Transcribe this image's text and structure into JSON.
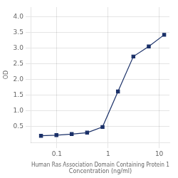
{
  "chart_data": {
    "type": "line",
    "xlabel": "Human Ras Association Domain Containing Protein 1\nConcentration (ng/ml)",
    "ylabel": "OD",
    "x": [
      0.049,
      0.098,
      0.195,
      0.39,
      0.781,
      1.563,
      3.125,
      6.25,
      12.5
    ],
    "values": [
      0.21,
      0.23,
      0.265,
      0.31,
      0.49,
      1.62,
      2.73,
      3.05,
      3.42
    ],
    "color": "#1a3068",
    "marker": "square",
    "log": "x",
    "xlim": [
      0.03162277660168379,
      15.848931924611133
    ],
    "xticks": [
      0.1,
      1,
      10
    ],
    "ylim": [
      0.0,
      4.3
    ],
    "yticks": [
      0.5,
      {
        "value": 1,
        "label": "1.0"
      },
      1.5,
      {
        "value": 2,
        "label": "2.0"
      },
      2.5,
      {
        "value": 3,
        "label": "3.0"
      },
      3.5,
      {
        "value": 4,
        "label": "4.0"
      }
    ],
    "grid": true
  }
}
